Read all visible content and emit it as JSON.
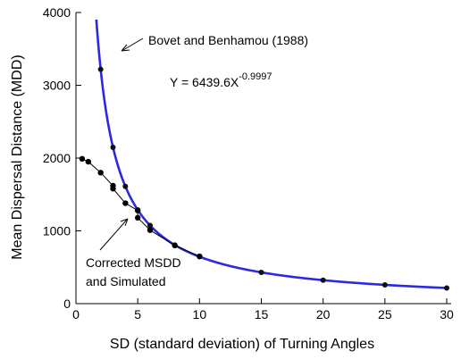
{
  "chart_data": {
    "type": "line",
    "title": "",
    "xlabel": "SD  (standard deviation)  of  Turning  Angles",
    "ylabel": "Mean  Dispersal  Distance  (MDD)",
    "xlim": [
      0,
      30
    ],
    "ylim": [
      0,
      4000
    ],
    "xticks": [
      0,
      5,
      10,
      15,
      20,
      25,
      30
    ],
    "yticks": [
      0,
      1000,
      2000,
      3000,
      4000
    ],
    "grid": false,
    "series": [
      {
        "name": "Bovet and Benhamou (1988)",
        "color": "#2a2ae0",
        "style": "thick-curve-with-markers",
        "equation": {
          "prefix": "Y = 6439.6X",
          "exponent": "-0.9997",
          "a": 6439.6,
          "b": -0.9997
        },
        "x": [
          2,
          3,
          4,
          5,
          6,
          8,
          10,
          15,
          20,
          25,
          30
        ],
        "y": [
          3220,
          2147,
          1610,
          1288,
          1073,
          805,
          644,
          429,
          322,
          258,
          215
        ]
      },
      {
        "name": "Corrected MSDD and Simulated",
        "color": "#000000",
        "style": "thin-line-with-markers",
        "x": [
          0.5,
          1,
          2,
          3,
          3,
          4,
          5,
          5,
          6,
          8,
          10
        ],
        "y": [
          1990,
          1950,
          1800,
          1620,
          1580,
          1380,
          1280,
          1180,
          1010,
          800,
          650
        ]
      }
    ],
    "annotations": [
      {
        "text": "Bovet and Benhamou (1988)"
      },
      {
        "text": "Corrected MSDD"
      },
      {
        "text": "and Simulated"
      }
    ]
  }
}
